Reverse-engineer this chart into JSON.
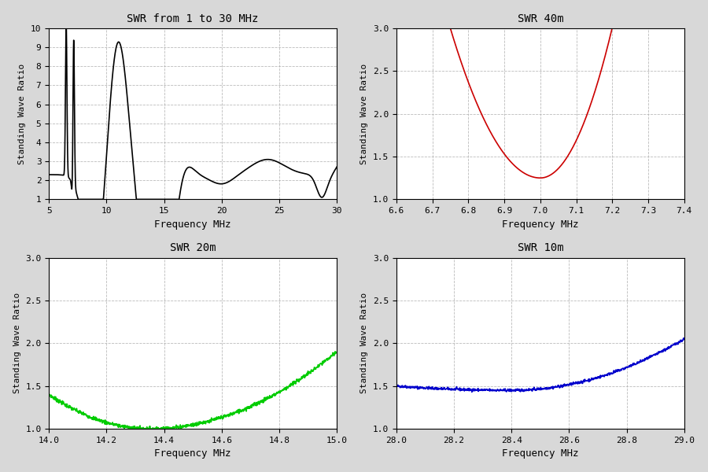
{
  "title_tl": "SWR from 1 to 30 MHz",
  "title_tr": "SWR 40m",
  "title_bl": "SWR 20m",
  "title_br": "SWR 10m",
  "ylabel": "Standing Wave Ratio",
  "xlabel": "Frequency MHz",
  "bg_color": "#d8d8d8",
  "plot_bg": "#ffffff",
  "color_tl": "#000000",
  "color_tr": "#cc0000",
  "color_bl": "#00cc00",
  "color_br": "#0000cc",
  "tl_xlim": [
    5,
    30
  ],
  "tl_ylim": [
    1,
    10
  ],
  "tr_xlim": [
    6.6,
    7.4
  ],
  "tr_ylim": [
    1,
    3
  ],
  "bl_xlim": [
    14,
    15
  ],
  "bl_ylim": [
    1,
    3
  ],
  "br_xlim": [
    28,
    29
  ],
  "br_ylim": [
    1,
    3
  ]
}
